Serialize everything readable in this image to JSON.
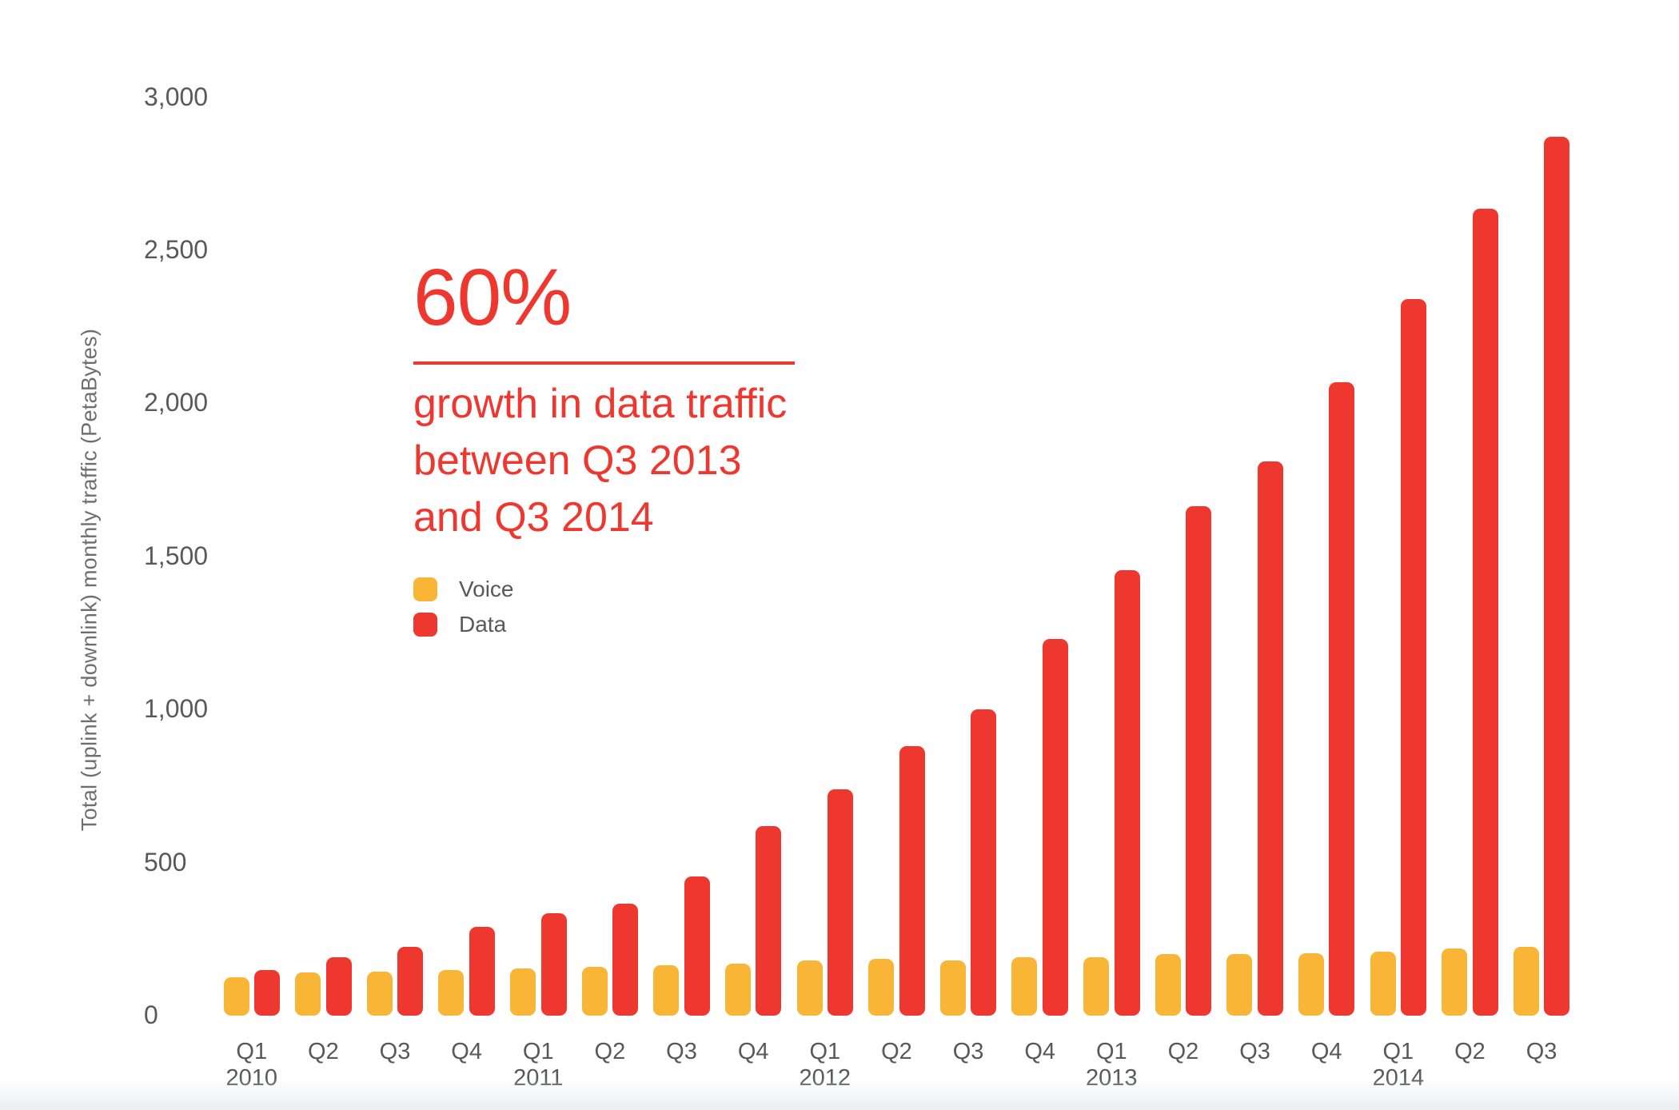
{
  "colors": {
    "voice": "#F9B535",
    "data": "#EE372E",
    "text_gray": "#58595B",
    "accent_red": "#EE372E"
  },
  "annotation": {
    "headline": "60%",
    "lines": [
      "growth in data traffic",
      "between Q3 2013",
      "and Q3 2014"
    ]
  },
  "legend": {
    "items": [
      {
        "label": "Voice",
        "color": "#F9B535"
      },
      {
        "label": "Data",
        "color": "#EE372E"
      }
    ]
  },
  "chart_data": {
    "type": "bar",
    "title": "",
    "ylabel": "Total (uplink + downlink) monthly traffic (PetaBytes)",
    "ylim": [
      0,
      3000
    ],
    "grid": false,
    "legend_position": "inside-left",
    "yticks": [
      {
        "value": 0,
        "label": "0"
      },
      {
        "value": 500,
        "label": "500"
      },
      {
        "value": 1000,
        "label": "1,000"
      },
      {
        "value": 1500,
        "label": "1,500"
      },
      {
        "value": 2000,
        "label": "2,000"
      },
      {
        "value": 2500,
        "label": "2,500"
      },
      {
        "value": 3000,
        "label": "3,000"
      }
    ],
    "categories": [
      {
        "quarter": "Q1",
        "year": "2010"
      },
      {
        "quarter": "Q2",
        "year": null
      },
      {
        "quarter": "Q3",
        "year": null
      },
      {
        "quarter": "Q4",
        "year": null
      },
      {
        "quarter": "Q1",
        "year": "2011"
      },
      {
        "quarter": "Q2",
        "year": null
      },
      {
        "quarter": "Q3",
        "year": null
      },
      {
        "quarter": "Q4",
        "year": null
      },
      {
        "quarter": "Q1",
        "year": "2012"
      },
      {
        "quarter": "Q2",
        "year": null
      },
      {
        "quarter": "Q3",
        "year": null
      },
      {
        "quarter": "Q4",
        "year": null
      },
      {
        "quarter": "Q1",
        "year": "2013"
      },
      {
        "quarter": "Q2",
        "year": null
      },
      {
        "quarter": "Q3",
        "year": null
      },
      {
        "quarter": "Q4",
        "year": null
      },
      {
        "quarter": "Q1",
        "year": "2014"
      },
      {
        "quarter": "Q2",
        "year": null
      },
      {
        "quarter": "Q3",
        "year": null
      }
    ],
    "series": [
      {
        "name": "Voice",
        "color": "#F9B535",
        "values": [
          125,
          140,
          145,
          150,
          155,
          160,
          165,
          170,
          180,
          185,
          180,
          190,
          190,
          200,
          200,
          205,
          210,
          220,
          225
        ]
      },
      {
        "name": "Data",
        "color": "#EE372E",
        "values": [
          150,
          190,
          225,
          290,
          335,
          365,
          455,
          620,
          740,
          880,
          1000,
          1230,
          1455,
          1665,
          1810,
          2070,
          2340,
          2635,
          2870
        ]
      }
    ]
  }
}
